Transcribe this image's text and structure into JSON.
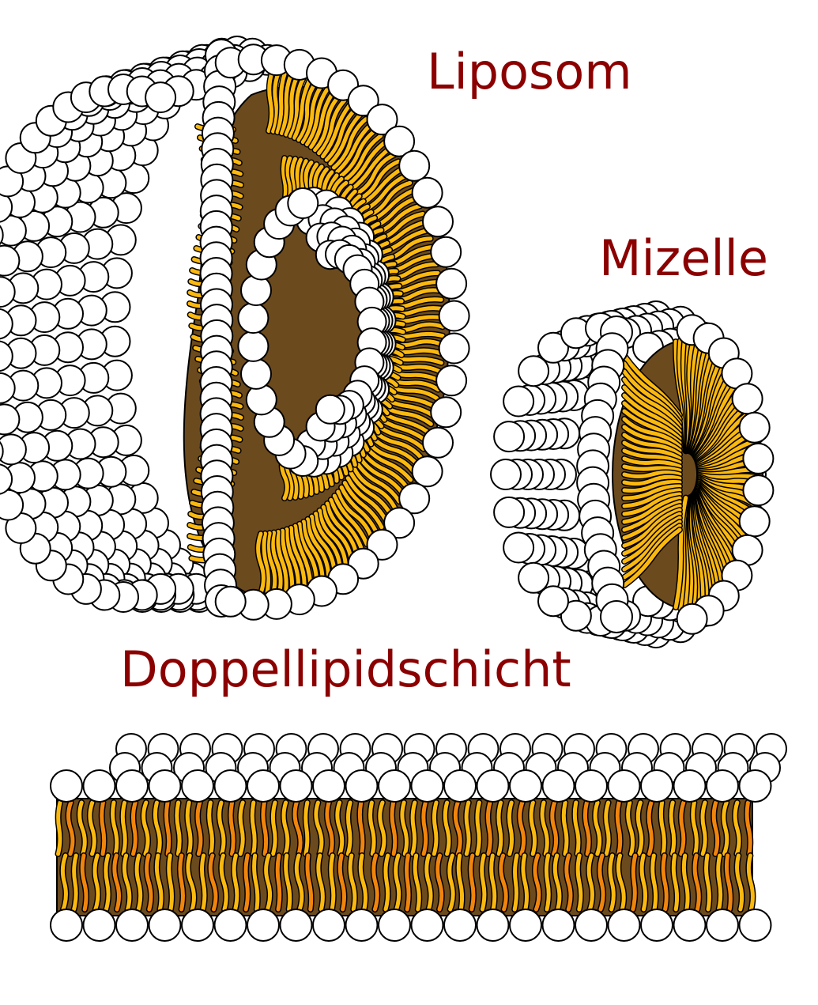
{
  "labels": {
    "liposom": "Liposom",
    "mizelle": "Mizelle",
    "doppellipidschicht": "Doppellipidschicht"
  },
  "colors": {
    "label": "#8b0000",
    "head_fill": "#ffffff",
    "outline": "#000000",
    "tail_yellow": "#fbb80f",
    "tail_orange": "#f0840c",
    "core_brown": "#6b4a1e"
  },
  "structures": {
    "liposome": {
      "name": "liposome",
      "outer_head_rows": 7,
      "inner_head_rows": 4
    },
    "micelle": {
      "name": "micelle",
      "head_rows": 6
    },
    "bilayer": {
      "name": "bilayer",
      "top_rows": 3,
      "heads_per_row": 21,
      "bottom_heads": 22
    }
  }
}
